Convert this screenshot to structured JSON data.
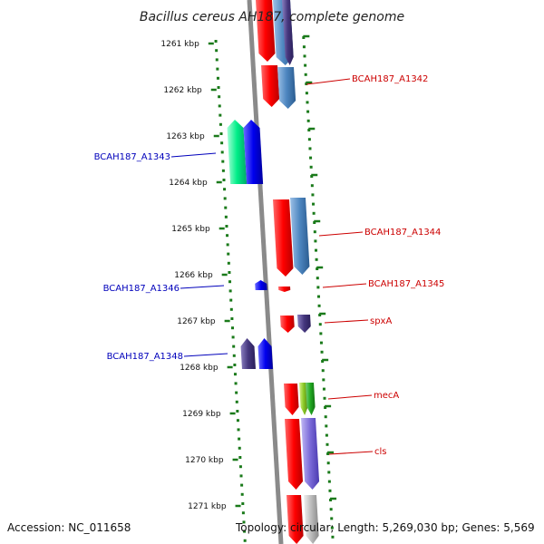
{
  "title": "Bacillus cereus AH187, complete genome",
  "footer": {
    "accession": "Accession: NC_011658",
    "topology": "Topology: circular; Length: 5,269,030 bp; Genes: 5,569"
  },
  "ruler": {
    "labels": [
      "1261 kbp",
      "1262 kbp",
      "1263 kbp",
      "1264 kbp",
      "1265 kbp",
      "1266 kbp",
      "1267 kbp",
      "1268 kbp",
      "1269 kbp",
      "1270 kbp",
      "1271 kbp"
    ],
    "tick_color": "#1a7a1a"
  },
  "backbone_color": "#8a8a8a",
  "gene_labels": [
    {
      "name": "BCAH187_A1342",
      "color": "#cc0000"
    },
    {
      "name": "BCAH187_A1343",
      "color": "#0000bb"
    },
    {
      "name": "BCAH187_A1344",
      "color": "#cc0000"
    },
    {
      "name": "BCAH187_A1346",
      "color": "#0000bb"
    },
    {
      "name": "BCAH187_A1345",
      "color": "#cc0000"
    },
    {
      "name": "spxA",
      "color": "#cc0000"
    },
    {
      "name": "BCAH187_A1348",
      "color": "#0000bb"
    },
    {
      "name": "mecA",
      "color": "#cc0000"
    },
    {
      "name": "cls",
      "color": "#cc0000"
    }
  ],
  "gene_colors": {
    "red": "#ff0000",
    "steelblue": "#4d86c0",
    "darkslate": "#45377e",
    "blue": "#0000ee",
    "teal": "#00ee88",
    "green": "#22aa22",
    "lime": "#8ac926",
    "lavender": "#7a6ad8",
    "gray": "#bbbbbb"
  }
}
